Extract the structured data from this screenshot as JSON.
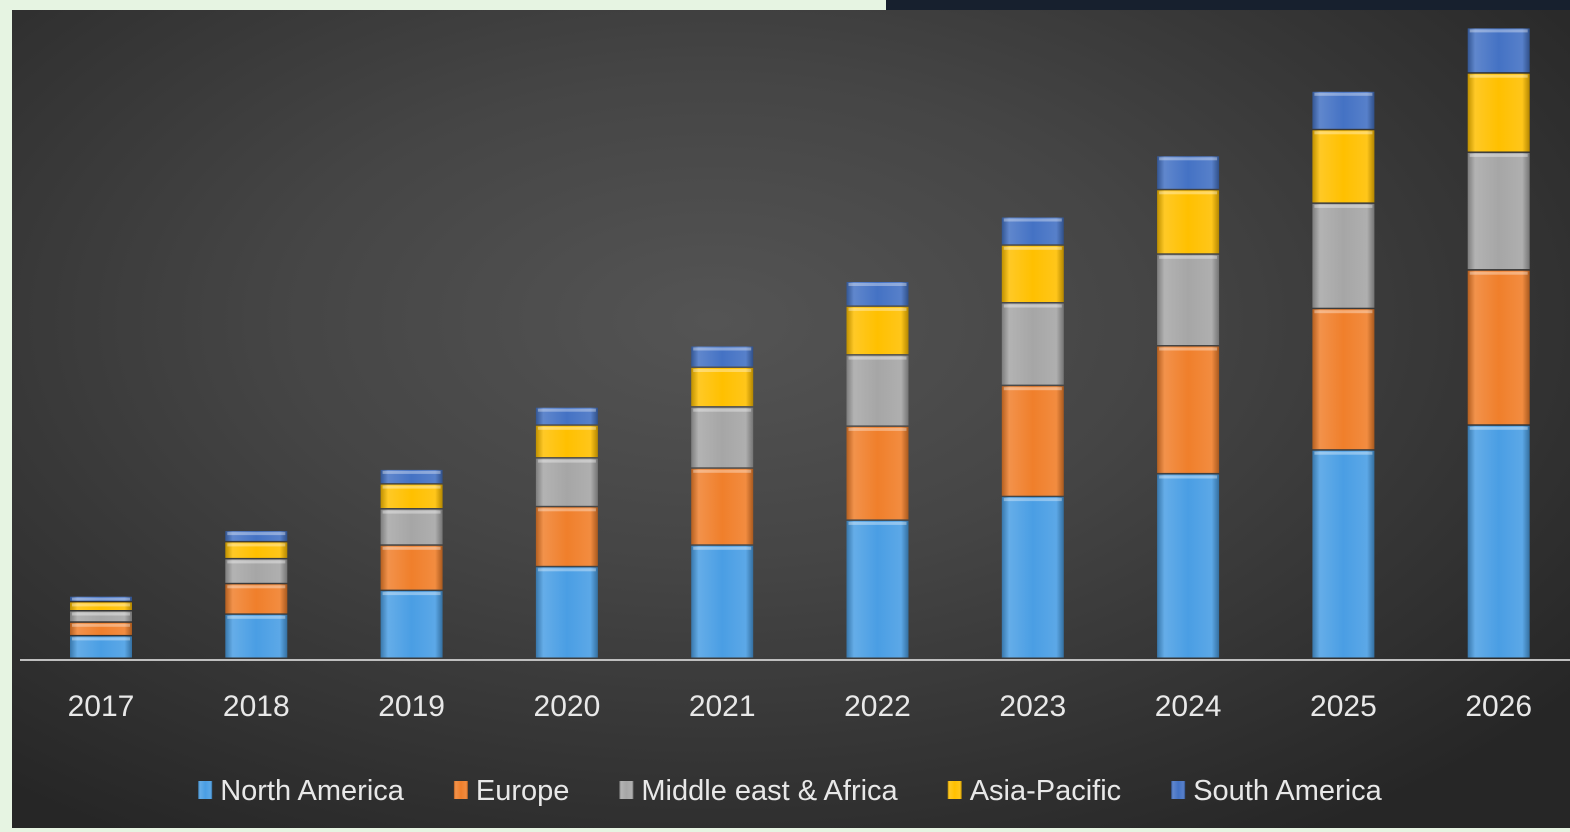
{
  "colors": {
    "background_dark": "#333333",
    "frame_light": "#e6f4e2",
    "axis_line": "#bfbfbf",
    "text": "#e8e8e8"
  },
  "chart_data": {
    "type": "bar",
    "stacked": true,
    "title": "",
    "xlabel": "",
    "ylabel": "",
    "y_axis_visible": false,
    "grid": false,
    "legend_position": "bottom",
    "ylim": [
      0,
      560
    ],
    "categories": [
      "2017",
      "2018",
      "2019",
      "2020",
      "2021",
      "2022",
      "2023",
      "2024",
      "2025",
      "2026"
    ],
    "series": [
      {
        "name": "North America",
        "color": "#4a9ee4",
        "values": [
          20,
          39,
          60,
          81,
          100,
          122,
          143,
          163,
          184,
          206
        ]
      },
      {
        "name": "Europe",
        "color": "#f07f2b",
        "values": [
          12,
          27,
          40,
          53,
          68,
          83,
          98,
          113,
          125,
          137
        ]
      },
      {
        "name": "Middle east & Africa",
        "color": "#a6a6a6",
        "values": [
          10,
          22,
          32,
          43,
          54,
          63,
          73,
          81,
          93,
          104
        ]
      },
      {
        "name": "Asia-Pacific",
        "color": "#ffc000",
        "values": [
          8,
          15,
          22,
          29,
          35,
          43,
          51,
          57,
          65,
          70
        ]
      },
      {
        "name": "South America",
        "color": "#4472c4",
        "values": [
          5,
          10,
          13,
          16,
          19,
          22,
          25,
          30,
          34,
          40
        ]
      }
    ]
  }
}
